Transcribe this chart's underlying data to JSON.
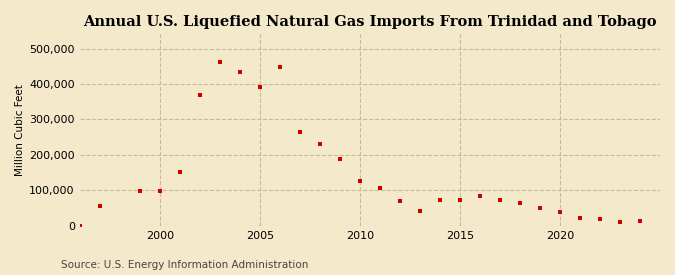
{
  "title": "Annual U.S. Liquefied Natural Gas Imports From Trinidad and Tobago",
  "ylabel": "Million Cubic Feet",
  "source": "Source: U.S. Energy Information Administration",
  "background_color": "#f5e9cc",
  "plot_bg_color": "#f5e9cc",
  "grid_color": "#c8b89a",
  "dot_color": "#cc0000",
  "years": [
    1996,
    1997,
    1999,
    2000,
    2001,
    2002,
    2003,
    2004,
    2005,
    2006,
    2007,
    2008,
    2009,
    2010,
    2011,
    2012,
    2013,
    2014,
    2015,
    2016,
    2017,
    2018,
    2019,
    2020,
    2021,
    2022,
    2023,
    2024
  ],
  "values": [
    1000,
    55000,
    97000,
    97000,
    152000,
    370000,
    462000,
    434000,
    392000,
    447000,
    265000,
    232000,
    188000,
    127000,
    107000,
    70000,
    43000,
    72000,
    73000,
    83000,
    72000,
    65000,
    50000,
    38000,
    21000,
    20000,
    11000,
    13000
  ],
  "xlim": [
    1996,
    2025
  ],
  "ylim": [
    0,
    540000
  ],
  "yticks": [
    0,
    100000,
    200000,
    300000,
    400000,
    500000
  ],
  "ytick_labels": [
    "0",
    "100,000",
    "200,000",
    "300,000",
    "400,000",
    "500,000"
  ],
  "xticks": [
    2000,
    2005,
    2010,
    2015,
    2020
  ],
  "title_fontsize": 10.5,
  "label_fontsize": 7.5,
  "tick_fontsize": 8,
  "source_fontsize": 7.5
}
